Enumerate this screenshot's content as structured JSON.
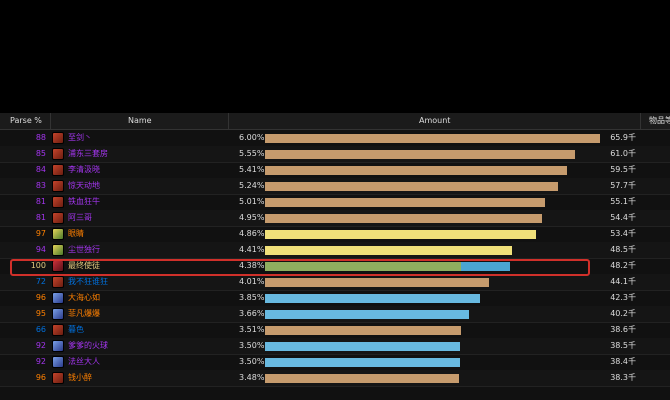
{
  "headers": {
    "parse": "Parse %",
    "name": "Name",
    "amount": "Amount",
    "item": "物品等"
  },
  "colors": {
    "legendary": "#ff8000",
    "epic": "#a335ee",
    "rare": "#0070dd",
    "artifact": "#e5cc80",
    "hunter_bar": "#b6906a",
    "warrior_bar": "#c69b6d",
    "monk_bar": "#f0e07a",
    "mage_bar": "#68b9e0",
    "mixed_bar_a": "#8fae5f",
    "mixed_bar_b": "#4aa5d2",
    "highlight": "#d0302a"
  },
  "rows": [
    {
      "parse": "88",
      "parse_color": "#a335ee",
      "name": "至剑丶",
      "icon": "warrior-icon",
      "pct": "6.00%",
      "fraction": 1.0,
      "bar_color": "#c69b6d",
      "amount": "65.9千"
    },
    {
      "parse": "85",
      "parse_color": "#a335ee",
      "name": "浦东三套房",
      "icon": "warrior-icon",
      "pct": "5.55%",
      "fraction": 0.925,
      "bar_color": "#c69b6d",
      "amount": "61.0千"
    },
    {
      "parse": "84",
      "parse_color": "#a335ee",
      "name": "李清汲晓",
      "icon": "warrior-icon",
      "pct": "5.41%",
      "fraction": 0.902,
      "bar_color": "#c69b6d",
      "amount": "59.5千"
    },
    {
      "parse": "83",
      "parse_color": "#a335ee",
      "name": "惊天动地",
      "icon": "warrior-icon",
      "pct": "5.24%",
      "fraction": 0.874,
      "bar_color": "#c69b6d",
      "amount": "57.7千"
    },
    {
      "parse": "81",
      "parse_color": "#a335ee",
      "name": "铁血狂牛",
      "icon": "warrior-icon",
      "pct": "5.01%",
      "fraction": 0.836,
      "bar_color": "#c69b6d",
      "amount": "55.1千"
    },
    {
      "parse": "81",
      "parse_color": "#a335ee",
      "name": "阿三哥",
      "icon": "warrior-icon",
      "pct": "4.95%",
      "fraction": 0.826,
      "bar_color": "#c69b6d",
      "amount": "54.4千"
    },
    {
      "parse": "97",
      "parse_color": "#ff8000",
      "name": "眼睛",
      "icon": "rogue-icon",
      "pct": "4.86%",
      "fraction": 0.81,
      "bar_color": "#f0e07a",
      "amount": "53.4千"
    },
    {
      "parse": "94",
      "parse_color": "#a335ee",
      "name": "尘世独行",
      "icon": "rogue-icon",
      "pct": "4.41%",
      "fraction": 0.736,
      "bar_color": "#f0e07a",
      "amount": "48.5千"
    },
    {
      "parse": "100",
      "parse_color": "#e5cc80",
      "name": "最终使徒",
      "icon": "hunter-icon",
      "pct": "4.38%",
      "fraction": 0.731,
      "bar_color": "#8fae5f",
      "bar_split": 0.8,
      "bar_color_b": "#4aa5d2",
      "amount": "48.2千",
      "highlighted": true
    },
    {
      "parse": "72",
      "parse_color": "#0070dd",
      "name": "我不狂谁狂",
      "icon": "warrior-icon",
      "pct": "4.01%",
      "fraction": 0.669,
      "bar_color": "#c69b6d",
      "amount": "44.1千"
    },
    {
      "parse": "96",
      "parse_color": "#ff8000",
      "name": "大海心如",
      "icon": "mage-icon",
      "pct": "3.85%",
      "fraction": 0.642,
      "bar_color": "#68b9e0",
      "amount": "42.3千"
    },
    {
      "parse": "95",
      "parse_color": "#ff8000",
      "name": "菲凡爆爆",
      "icon": "mage-icon",
      "pct": "3.66%",
      "fraction": 0.61,
      "bar_color": "#68b9e0",
      "amount": "40.2千"
    },
    {
      "parse": "66",
      "parse_color": "#0070dd",
      "name": "暮色",
      "icon": "warrior-icon",
      "pct": "3.51%",
      "fraction": 0.585,
      "bar_color": "#c69b6d",
      "amount": "38.6千"
    },
    {
      "parse": "92",
      "parse_color": "#a335ee",
      "name": "爹爹的火球",
      "icon": "mage-icon",
      "pct": "3.50%",
      "fraction": 0.583,
      "bar_color": "#68b9e0",
      "amount": "38.5千"
    },
    {
      "parse": "92",
      "parse_color": "#a335ee",
      "name": "法丝大人",
      "icon": "mage-icon",
      "pct": "3.50%",
      "fraction": 0.583,
      "bar_color": "#68b9e0",
      "amount": "38.4千"
    },
    {
      "parse": "96",
      "parse_color": "#ff8000",
      "name": "钱小醉",
      "icon": "warrior-icon",
      "pct": "3.48%",
      "fraction": 0.58,
      "bar_color": "#c69b6d",
      "amount": "38.3千"
    }
  ]
}
